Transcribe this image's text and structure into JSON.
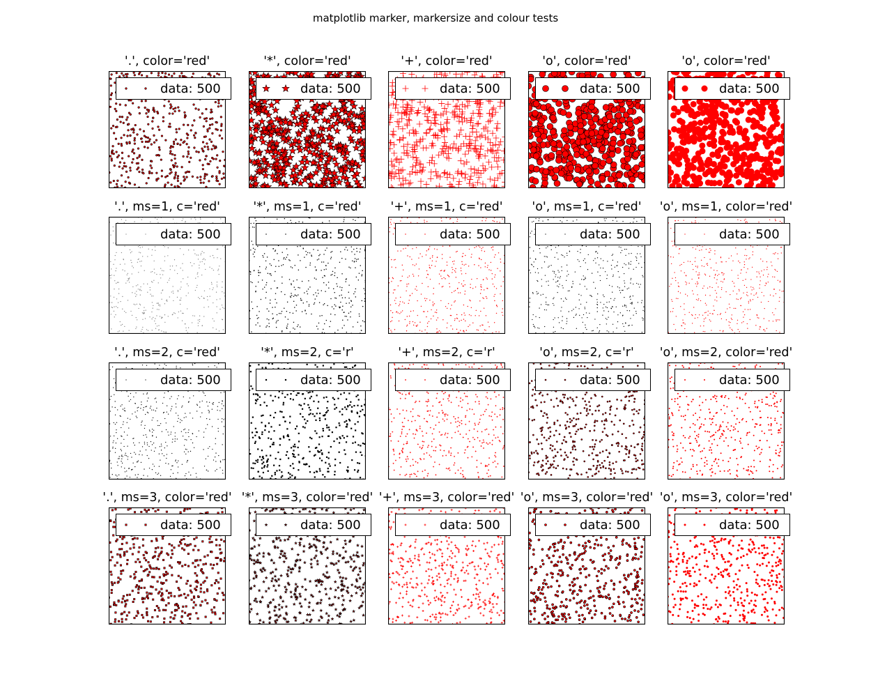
{
  "figure": {
    "title": "matplotlib marker, markersize and colour tests"
  },
  "chart_data": [
    {
      "type": "scatter",
      "title": "'.', color='red'",
      "marker": ".",
      "color": "#ff0000",
      "edgecolor": "#000000",
      "markersize": 4,
      "n_points": 500,
      "legend_entries": [
        "data: 500"
      ],
      "legend_position": "upper left",
      "xlim": [
        0,
        1
      ],
      "ylim": [
        0,
        1
      ]
    },
    {
      "type": "scatter",
      "title": "'*', color='red'",
      "marker": "*",
      "color": "#ff0000",
      "edgecolor": "#000000",
      "markersize": 9,
      "n_points": 500,
      "legend_entries": [
        "data: 500"
      ],
      "legend_position": "upper left",
      "xlim": [
        0,
        1
      ],
      "ylim": [
        0,
        1
      ]
    },
    {
      "type": "scatter",
      "title": "'+', color='red'",
      "marker": "+",
      "color": "#ff0000",
      "edgecolor": "#ff0000",
      "markersize": 9,
      "n_points": 500,
      "legend_entries": [
        "data: 500"
      ],
      "legend_position": "upper left",
      "xlim": [
        0,
        1
      ],
      "ylim": [
        0,
        1
      ]
    },
    {
      "type": "scatter",
      "title": "'o', color='red'",
      "marker": "o",
      "color": "#ff0000",
      "edgecolor": "#000000",
      "markersize": 9,
      "n_points": 500,
      "legend_entries": [
        "data: 500"
      ],
      "legend_position": "upper left",
      "xlim": [
        0,
        1
      ],
      "ylim": [
        0,
        1
      ]
    },
    {
      "type": "scatter",
      "title": "'o', color='red'",
      "marker": "o",
      "color": "#ff0000",
      "edgecolor": "#ff0000",
      "markersize": 9,
      "n_points": 500,
      "legend_entries": [
        "data: 500"
      ],
      "legend_position": "upper left",
      "xlim": [
        0,
        1
      ],
      "ylim": [
        0,
        1
      ]
    },
    {
      "type": "scatter",
      "title": "'.', ms=1, c='red'",
      "marker": ".",
      "color": "#808080",
      "edgecolor": "#808080",
      "markersize": 1,
      "n_points": 500,
      "legend_entries": [
        "data: 500"
      ],
      "legend_position": "upper left",
      "xlim": [
        0,
        1
      ],
      "ylim": [
        0,
        1
      ]
    },
    {
      "type": "scatter",
      "title": "'*', ms=1, c='red'",
      "marker": "*",
      "color": "#000000",
      "edgecolor": "#000000",
      "markersize": 1,
      "n_points": 500,
      "legend_entries": [
        "data: 500"
      ],
      "legend_position": "upper left",
      "xlim": [
        0,
        1
      ],
      "ylim": [
        0,
        1
      ]
    },
    {
      "type": "scatter",
      "title": "'+', ms=1, c='red'",
      "marker": "+",
      "color": "#ff0000",
      "edgecolor": "#ff0000",
      "markersize": 1,
      "n_points": 500,
      "legend_entries": [
        "data: 500"
      ],
      "legend_position": "upper left",
      "xlim": [
        0,
        1
      ],
      "ylim": [
        0,
        1
      ]
    },
    {
      "type": "scatter",
      "title": "'o', ms=1, c='red'",
      "marker": "o",
      "color": "#000000",
      "edgecolor": "#000000",
      "markersize": 1,
      "n_points": 500,
      "legend_entries": [
        "data: 500"
      ],
      "legend_position": "upper left",
      "xlim": [
        0,
        1
      ],
      "ylim": [
        0,
        1
      ]
    },
    {
      "type": "scatter",
      "title": "'o', ms=1, color='red'",
      "marker": "o",
      "color": "#ff0000",
      "edgecolor": "#ff0000",
      "markersize": 1,
      "n_points": 500,
      "legend_entries": [
        "data: 500"
      ],
      "legend_position": "upper left",
      "xlim": [
        0,
        1
      ],
      "ylim": [
        0,
        1
      ]
    },
    {
      "type": "scatter",
      "title": "'.', ms=2, c='red'",
      "marker": ".",
      "color": "#000000",
      "edgecolor": "#000000",
      "markersize": 2,
      "n_points": 500,
      "legend_entries": [
        "data: 500"
      ],
      "legend_position": "upper left",
      "xlim": [
        0,
        1
      ],
      "ylim": [
        0,
        1
      ]
    },
    {
      "type": "scatter",
      "title": "'*', ms=2, c='r'",
      "marker": "*",
      "color": "#000000",
      "edgecolor": "#000000",
      "markersize": 2,
      "n_points": 500,
      "legend_entries": [
        "data: 500"
      ],
      "legend_position": "upper left",
      "xlim": [
        0,
        1
      ],
      "ylim": [
        0,
        1
      ]
    },
    {
      "type": "scatter",
      "title": "'+', ms=2, c='r'",
      "marker": "+",
      "color": "#ff0000",
      "edgecolor": "#ff0000",
      "markersize": 2,
      "n_points": 500,
      "legend_entries": [
        "data: 500"
      ],
      "legend_position": "upper left",
      "xlim": [
        0,
        1
      ],
      "ylim": [
        0,
        1
      ]
    },
    {
      "type": "scatter",
      "title": "'o', ms=2, c='r'",
      "marker": "o",
      "color": "#ff0000",
      "edgecolor": "#000000",
      "markersize": 2,
      "n_points": 500,
      "legend_entries": [
        "data: 500"
      ],
      "legend_position": "upper left",
      "xlim": [
        0,
        1
      ],
      "ylim": [
        0,
        1
      ]
    },
    {
      "type": "scatter",
      "title": "'o', ms=2, color='red'",
      "marker": "o",
      "color": "#ff0000",
      "edgecolor": "#ff0000",
      "markersize": 2,
      "n_points": 500,
      "legend_entries": [
        "data: 500"
      ],
      "legend_position": "upper left",
      "xlim": [
        0,
        1
      ],
      "ylim": [
        0,
        1
      ]
    },
    {
      "type": "scatter",
      "title": "'.', ms=3, color='red'",
      "marker": ".",
      "color": "#ff0000",
      "edgecolor": "#000000",
      "markersize": 3,
      "n_points": 500,
      "legend_entries": [
        "data: 500"
      ],
      "legend_position": "upper left",
      "xlim": [
        0,
        1
      ],
      "ylim": [
        0,
        1
      ]
    },
    {
      "type": "scatter",
      "title": "'*', ms=3, color='red'",
      "marker": "*",
      "color": "#ff0000",
      "edgecolor": "#000000",
      "markersize": 3,
      "n_points": 500,
      "legend_entries": [
        "data: 500"
      ],
      "legend_position": "upper left",
      "xlim": [
        0,
        1
      ],
      "ylim": [
        0,
        1
      ]
    },
    {
      "type": "scatter",
      "title": "'+', ms=3, color='red'",
      "marker": "+",
      "color": "#ff0000",
      "edgecolor": "#ff0000",
      "markersize": 3,
      "n_points": 500,
      "legend_entries": [
        "data: 500"
      ],
      "legend_position": "upper left",
      "xlim": [
        0,
        1
      ],
      "ylim": [
        0,
        1
      ]
    },
    {
      "type": "scatter",
      "title": "'o', ms=3, color='red'",
      "marker": "o",
      "color": "#ff0000",
      "edgecolor": "#000000",
      "markersize": 3,
      "n_points": 500,
      "legend_entries": [
        "data: 500"
      ],
      "legend_position": "upper left",
      "xlim": [
        0,
        1
      ],
      "ylim": [
        0,
        1
      ]
    },
    {
      "type": "scatter",
      "title": "'o', ms=3, color='red'",
      "marker": "o",
      "color": "#ff0000",
      "edgecolor": "#ff0000",
      "markersize": 3,
      "n_points": 500,
      "legend_entries": [
        "data: 500"
      ],
      "legend_position": "upper left",
      "xlim": [
        0,
        1
      ],
      "ylim": [
        0,
        1
      ]
    }
  ]
}
